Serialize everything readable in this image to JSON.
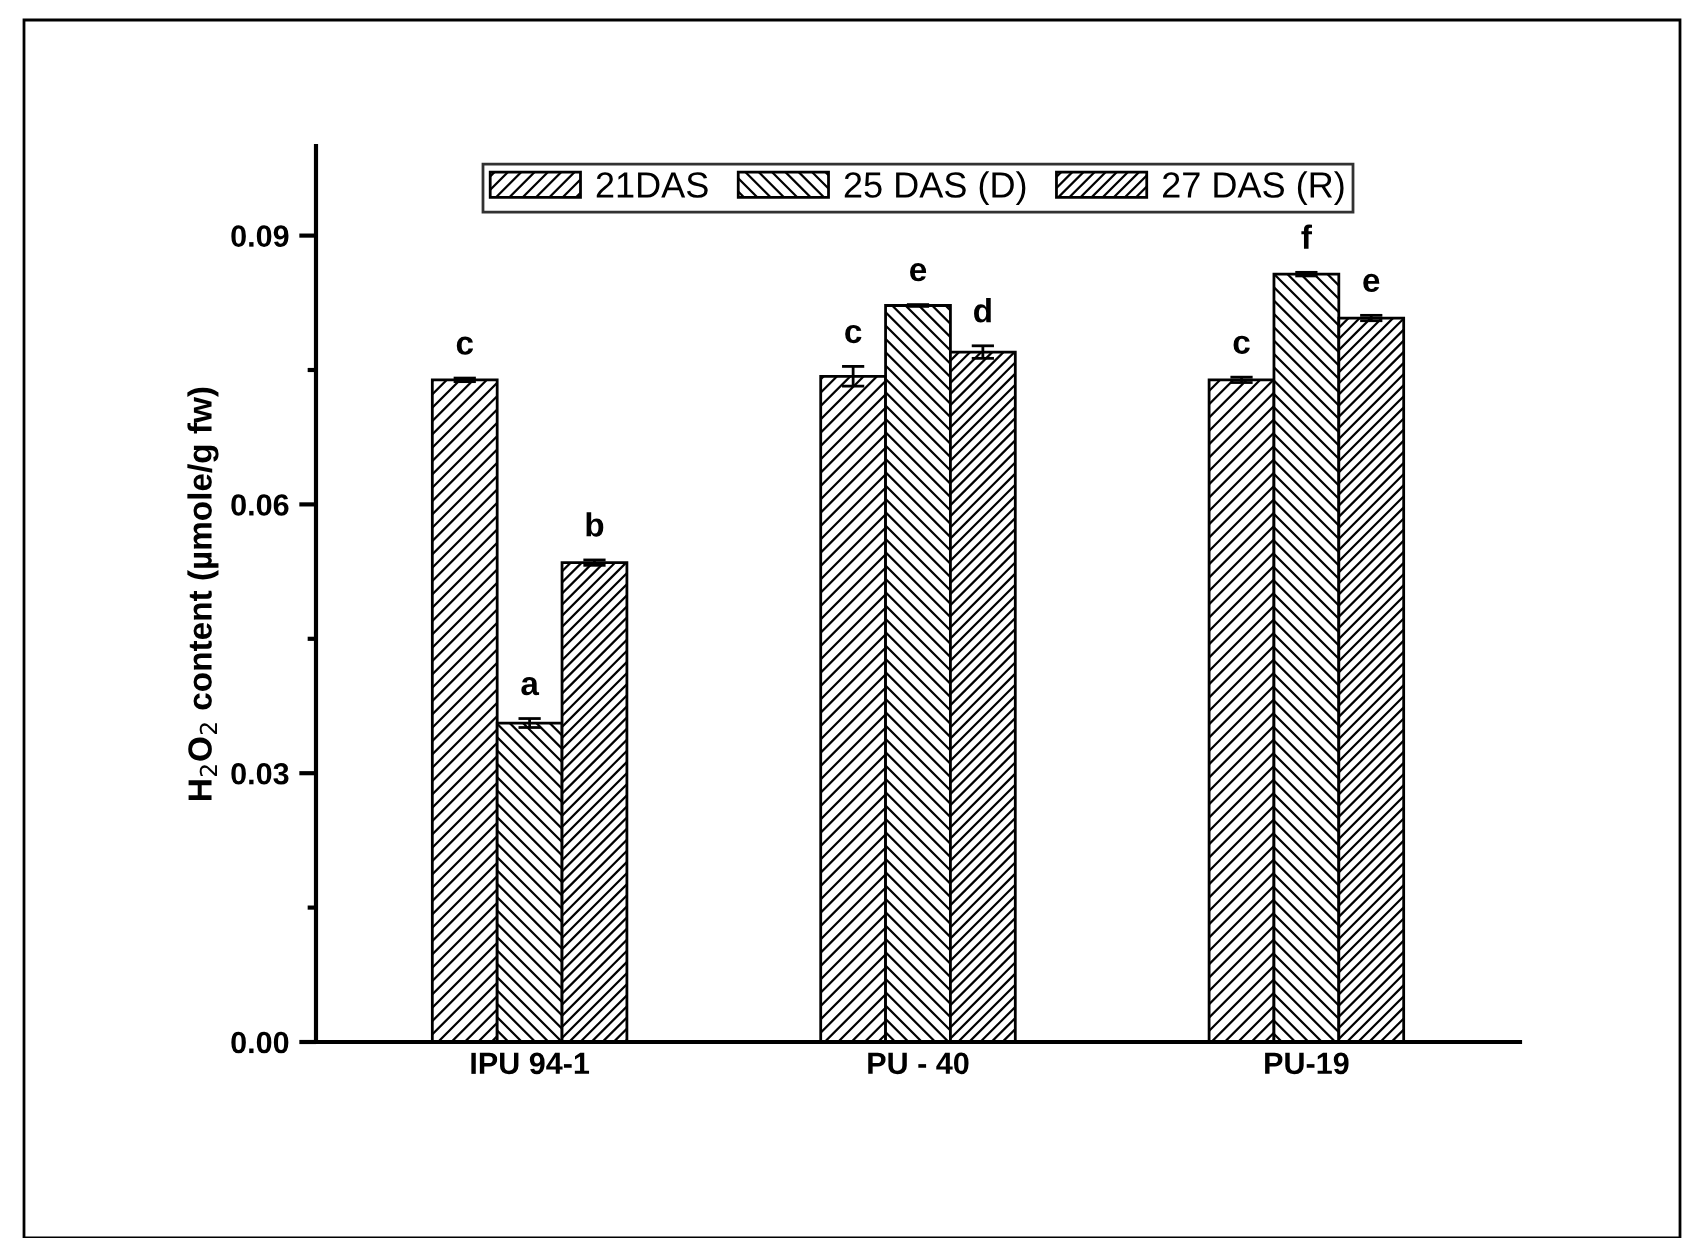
{
  "chart_data": {
    "type": "bar",
    "ylabel": "H$_{2}$O$_{2}$ content (µmole/g fw)",
    "categories": [
      "IPU 94-1",
      "PU - 40",
      "PU-19"
    ],
    "series": [
      {
        "name": "21DAS",
        "color": "#000000",
        "values": [
          0.0739,
          0.0743,
          0.0739
        ],
        "errors": [
          0.0002,
          0.0011,
          0.0003
        ],
        "value_labels": [
          "c",
          "c",
          "c"
        ]
      },
      {
        "name": "25 DAS (D)",
        "color": "#000000",
        "values": [
          0.0356,
          0.0822,
          0.0857
        ],
        "errors": [
          0.0005,
          0.0001,
          0.0002
        ],
        "value_labels": [
          "a",
          "e",
          "f"
        ]
      },
      {
        "name": "27 DAS (R)",
        "color": "#000000",
        "values": [
          0.0535,
          0.077,
          0.0808
        ],
        "errors": [
          0.0003,
          0.0007,
          0.0003
        ],
        "value_labels": [
          "b",
          "d",
          "e"
        ]
      }
    ],
    "ylim": [
      0,
      0.1
    ],
    "yticks": [
      {
        "value": 0,
        "label": "0.00"
      },
      0.03,
      0.06,
      0.09
    ],
    "legend": "top",
    "grid": false
  }
}
